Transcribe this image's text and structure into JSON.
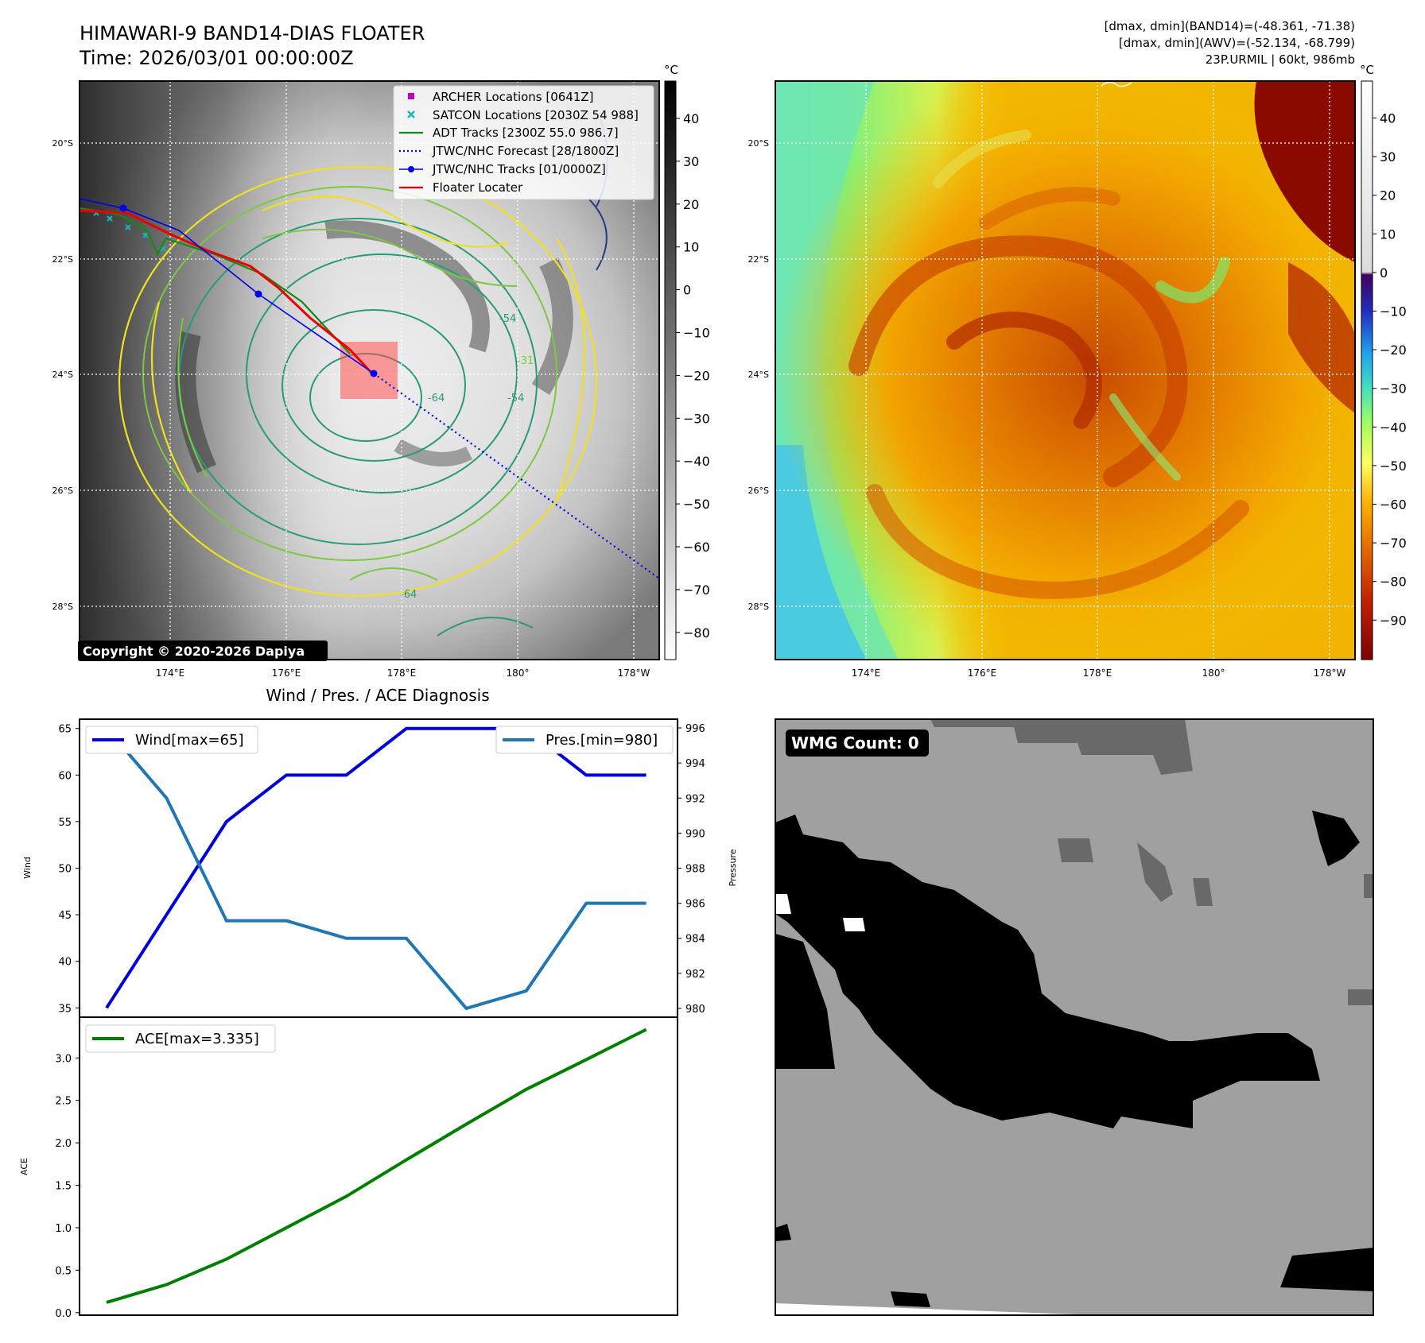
{
  "header": {
    "title": "HIMAWARI-9 BAND14-DIAS FLOATER",
    "time": "Time: 2026/03/01 00:00:00Z",
    "stats_band14": "[dmax, dmin](BAND14)=(-48.361, -71.38)",
    "stats_awv": "[dmax, dmin](AWV)=(-52.134, -68.799)",
    "storm_info": "23P.URMIL | 60kt, 986mb"
  },
  "map": {
    "lat_labels": [
      "20°S",
      "22°S",
      "24°S",
      "26°S",
      "28°S"
    ],
    "lon_labels": [
      "174°E",
      "176°E",
      "178°E",
      "180°",
      "178°W"
    ],
    "copyright": "Copyright © 2020-2026 Dapiya",
    "contour_labels": [
      "-54",
      "-64",
      "-54",
      "-31",
      "-64"
    ],
    "legend": [
      {
        "label": "ARCHER Locations [0641Z]",
        "color": "#c000c0",
        "kind": "square"
      },
      {
        "label": "SATCON Locations [2030Z 54 988]",
        "color": "#17b5b5",
        "kind": "x"
      },
      {
        "label": "ADT Tracks [2300Z 55.0 986.7]",
        "color": "#138a13",
        "kind": "line"
      },
      {
        "label": "JTWC/NHC Forecast [28/1800Z]",
        "color": "#0000ee",
        "kind": "dotted"
      },
      {
        "label": "JTWC/NHC Tracks [01/0000Z]",
        "color": "#0000ee",
        "kind": "line-dot"
      },
      {
        "label": "Floater Locater",
        "color": "#ee0000",
        "kind": "line"
      }
    ]
  },
  "colorbars": {
    "unit": "°C",
    "left_ticks": [
      "40",
      "30",
      "20",
      "10",
      "0",
      "−10",
      "−20",
      "−30",
      "−40",
      "−50",
      "−60",
      "−70",
      "−80"
    ],
    "right_ticks": [
      "40",
      "30",
      "20",
      "10",
      "0",
      "−10",
      "−20",
      "−30",
      "−40",
      "−50",
      "−60",
      "−70",
      "−80",
      "−90"
    ]
  },
  "colors": {
    "wind": "#0000dd",
    "pressure": "#1f77b4",
    "ace": "#008000",
    "forecast": "#0000ee",
    "floater": "#ee0000"
  },
  "diag": {
    "title": "Wind / Pres. / ACE Diagnosis",
    "wind_ylabel": "Wind",
    "pres_ylabel": "Pressure",
    "ace_ylabel": "ACE",
    "wind_ticks": [
      "65",
      "60",
      "55",
      "50",
      "45",
      "40",
      "35"
    ],
    "pres_ticks": [
      "996",
      "994",
      "992",
      "990",
      "988",
      "986",
      "984",
      "982",
      "980"
    ],
    "ace_ticks": [
      "3.0",
      "2.5",
      "2.0",
      "1.5",
      "1.0",
      "0.5",
      "0.0"
    ]
  },
  "wmg": {
    "count_label": "WMG Count: 0"
  },
  "chart_data": [
    {
      "type": "line",
      "x": [
        0,
        1,
        2,
        3,
        4,
        5,
        6,
        7,
        8,
        9
      ],
      "series": [
        {
          "name": "Wind[max=65]",
          "values": [
            35,
            45,
            55,
            60,
            60,
            65,
            65,
            65,
            60,
            60
          ],
          "axis": "left"
        },
        {
          "name": "Pres.[min=980]",
          "values": [
            996,
            992,
            985,
            985,
            984,
            984,
            980,
            981,
            986,
            986
          ],
          "axis": "right"
        }
      ],
      "xlabel": "",
      "ylabel": "Wind",
      "y2label": "Pressure",
      "ylim": [
        34,
        66
      ],
      "y2lim": [
        979.5,
        996.5
      ],
      "legend": [
        "upper left",
        "upper right"
      ]
    },
    {
      "type": "line",
      "x": [
        0,
        1,
        2,
        3,
        4,
        5,
        6,
        7,
        8,
        9
      ],
      "series": [
        {
          "name": "ACE[max=3.335]",
          "values": [
            0.12,
            0.33,
            0.63,
            1.0,
            1.37,
            1.8,
            2.22,
            2.63,
            2.98,
            3.335
          ]
        }
      ],
      "xlabel": "",
      "ylabel": "ACE",
      "ylim": [
        -0.03,
        3.48
      ],
      "legend": "upper left"
    }
  ]
}
